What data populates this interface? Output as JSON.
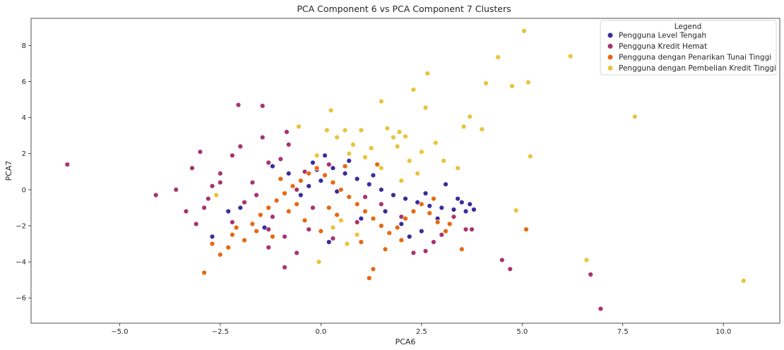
{
  "chart_data": {
    "type": "scatter",
    "title": "PCA Component 6 vs PCA Component 7 Clusters",
    "xlabel": "PCA6",
    "ylabel": "PCA7",
    "xlim": [
      -7.2,
      11.4
    ],
    "ylim": [
      -7.4,
      9.5
    ],
    "xticks": [
      -5.0,
      -2.5,
      0.0,
      2.5,
      5.0,
      7.5,
      10.0
    ],
    "xtick_labels": [
      "−5.0",
      "−2.5",
      "0.0",
      "2.5",
      "5.0",
      "7.5",
      "10.0"
    ],
    "yticks": [
      -6,
      -4,
      -2,
      0,
      2,
      4,
      6,
      8
    ],
    "ytick_labels": [
      "−6",
      "−4",
      "−2",
      "0",
      "2",
      "4",
      "6",
      "8"
    ],
    "grid": false,
    "legend": {
      "title": "Legend",
      "placement": "top-right"
    },
    "series": [
      {
        "name": "Pengguna Level Tengah",
        "color": "#3a2d9b",
        "points": [
          [
            0.1,
            1.9
          ],
          [
            -0.2,
            1.5
          ],
          [
            0.3,
            1.2
          ],
          [
            0.6,
            0.9
          ],
          [
            0.9,
            0.6
          ],
          [
            1.2,
            0.3
          ],
          [
            1.5,
            0.0
          ],
          [
            1.8,
            -0.3
          ],
          [
            2.1,
            -0.5
          ],
          [
            2.4,
            -0.7
          ],
          [
            2.7,
            -0.9
          ],
          [
            3.0,
            -1.0
          ],
          [
            3.3,
            -1.1
          ],
          [
            3.6,
            -1.2
          ],
          [
            3.8,
            -1.1
          ],
          [
            3.4,
            -0.5
          ],
          [
            3.1,
            0.3
          ],
          [
            2.2,
            -2.6
          ],
          [
            2.5,
            -2.3
          ],
          [
            1.0,
            -1.6
          ],
          [
            -0.5,
            -0.3
          ],
          [
            -1.2,
            1.3
          ],
          [
            -1.4,
            -2.1
          ],
          [
            -2.0,
            -1.0
          ],
          [
            0.0,
            0.5
          ],
          [
            0.4,
            -0.1
          ],
          [
            -0.3,
            0.2
          ],
          [
            1.6,
            -1.2
          ],
          [
            2.9,
            -1.6
          ],
          [
            3.5,
            -0.7
          ],
          [
            -0.8,
            0.9
          ],
          [
            0.7,
            1.6
          ],
          [
            1.3,
            0.8
          ],
          [
            2.0,
            -1.9
          ],
          [
            -2.3,
            -1.2
          ],
          [
            -2.7,
            -2.6
          ],
          [
            2.6,
            -0.2
          ],
          [
            3.7,
            -0.8
          ],
          [
            0.2,
            -2.9
          ],
          [
            -0.1,
            1.1
          ]
        ]
      },
      {
        "name": "Pengguna Kredit Hemat",
        "color": "#a8336e",
        "points": [
          [
            -6.3,
            1.4
          ],
          [
            -4.1,
            -0.3
          ],
          [
            -3.6,
            0.0
          ],
          [
            -3.35,
            -1.2
          ],
          [
            -3.2,
            1.2
          ],
          [
            -3.0,
            2.1
          ],
          [
            -3.1,
            -1.9
          ],
          [
            -2.9,
            -1.0
          ],
          [
            -2.8,
            -0.5
          ],
          [
            -2.7,
            0.2
          ],
          [
            -2.5,
            0.9
          ],
          [
            -2.2,
            1.9
          ],
          [
            -2.0,
            2.4
          ],
          [
            -2.05,
            4.7
          ],
          [
            -1.45,
            4.65
          ],
          [
            -1.45,
            2.9
          ],
          [
            -1.3,
            1.5
          ],
          [
            -0.85,
            3.2
          ],
          [
            -0.8,
            2.5
          ],
          [
            -1.0,
            1.7
          ],
          [
            -1.7,
            0.4
          ],
          [
            -1.9,
            -0.7
          ],
          [
            -1.2,
            -1.5
          ],
          [
            -0.9,
            -2.6
          ],
          [
            -0.9,
            -4.3
          ],
          [
            -0.6,
            -3.5
          ],
          [
            -1.3,
            -3.2
          ],
          [
            -1.3,
            -2.2
          ],
          [
            -2.2,
            -1.8
          ],
          [
            -0.3,
            -2.2
          ],
          [
            0.3,
            -2.7
          ],
          [
            0.9,
            -1.8
          ],
          [
            1.5,
            -0.8
          ],
          [
            2.0,
            -1.5
          ],
          [
            2.3,
            -3.5
          ],
          [
            2.6,
            -3.4
          ],
          [
            3.0,
            -2.5
          ],
          [
            3.6,
            -2.2
          ],
          [
            3.75,
            -2.2
          ],
          [
            4.5,
            -3.9
          ],
          [
            4.7,
            -4.4
          ],
          [
            6.7,
            -4.7
          ],
          [
            6.95,
            -6.6
          ],
          [
            -0.4,
            1.0
          ],
          [
            0.2,
            1.4
          ],
          [
            -0.6,
            0.0
          ],
          [
            1.1,
            -0.4
          ],
          [
            2.8,
            -2.9
          ],
          [
            -2.5,
            0.4
          ],
          [
            -1.6,
            -0.3
          ],
          [
            3.3,
            -1.5
          ],
          [
            -0.2,
            -1.0
          ]
        ]
      },
      {
        "name": "Pengguna dengan Penarikan Tunai Tinggi",
        "color": "#e8680f",
        "points": [
          [
            -2.9,
            -4.6
          ],
          [
            -2.7,
            -3.0
          ],
          [
            -2.5,
            -3.6
          ],
          [
            -2.3,
            -3.2
          ],
          [
            -2.1,
            -2.1
          ],
          [
            -1.9,
            -2.8
          ],
          [
            -1.7,
            -1.9
          ],
          [
            -1.5,
            -1.4
          ],
          [
            -1.3,
            -1.0
          ],
          [
            -1.1,
            -0.6
          ],
          [
            -0.9,
            -0.2
          ],
          [
            -0.7,
            0.2
          ],
          [
            -0.5,
            0.5
          ],
          [
            -0.3,
            0.9
          ],
          [
            -0.1,
            1.2
          ],
          [
            0.1,
            0.8
          ],
          [
            0.3,
            0.4
          ],
          [
            0.5,
            0.0
          ],
          [
            0.7,
            -0.4
          ],
          [
            0.9,
            -0.8
          ],
          [
            1.1,
            -1.2
          ],
          [
            1.3,
            -1.6
          ],
          [
            1.5,
            -2.0
          ],
          [
            1.7,
            -2.4
          ],
          [
            1.9,
            -2.1
          ],
          [
            2.1,
            -1.6
          ],
          [
            2.3,
            -1.2
          ],
          [
            2.5,
            -0.8
          ],
          [
            2.7,
            -1.3
          ],
          [
            2.9,
            -1.8
          ],
          [
            3.1,
            -2.3
          ],
          [
            3.5,
            -3.3
          ],
          [
            1.3,
            -4.4
          ],
          [
            1.2,
            -4.9
          ],
          [
            1.6,
            -3.3
          ],
          [
            5.1,
            -2.2
          ],
          [
            1.4,
            1.4
          ],
          [
            -0.4,
            -1.7
          ],
          [
            0.0,
            -2.3
          ],
          [
            -0.8,
            -1.2
          ],
          [
            -1.6,
            -2.3
          ],
          [
            -2.2,
            -2.5
          ],
          [
            0.6,
            1.3
          ],
          [
            -1.0,
            0.6
          ],
          [
            0.2,
            -1.0
          ],
          [
            2.0,
            -2.8
          ],
          [
            3.2,
            -1.9
          ],
          [
            -0.6,
            -0.8
          ],
          [
            1.0,
            -2.9
          ],
          [
            -1.2,
            -2.6
          ],
          [
            0.4,
            -1.4
          ],
          [
            2.8,
            -0.5
          ]
        ]
      },
      {
        "name": "Pengguna dengan Pembelian Kredit Tinggi",
        "color": "#e8c43a",
        "points": [
          [
            5.05,
            8.8
          ],
          [
            6.2,
            7.4
          ],
          [
            4.4,
            7.35
          ],
          [
            2.65,
            6.45
          ],
          [
            4.1,
            5.9
          ],
          [
            5.15,
            5.95
          ],
          [
            4.75,
            5.75
          ],
          [
            2.3,
            5.55
          ],
          [
            1.5,
            4.9
          ],
          [
            2.6,
            4.55
          ],
          [
            0.25,
            4.4
          ],
          [
            3.7,
            4.05
          ],
          [
            7.8,
            4.05
          ],
          [
            3.55,
            3.5
          ],
          [
            4.0,
            3.35
          ],
          [
            -0.55,
            3.5
          ],
          [
            0.15,
            3.3
          ],
          [
            0.6,
            3.3
          ],
          [
            1.0,
            3.3
          ],
          [
            1.65,
            3.4
          ],
          [
            1.95,
            3.2
          ],
          [
            2.1,
            2.95
          ],
          [
            2.85,
            2.6
          ],
          [
            0.4,
            2.9
          ],
          [
            0.8,
            2.5
          ],
          [
            1.25,
            2.3
          ],
          [
            1.9,
            2.4
          ],
          [
            2.5,
            2.1
          ],
          [
            5.2,
            1.85
          ],
          [
            3.05,
            1.6
          ],
          [
            3.4,
            1.2
          ],
          [
            2.4,
            0.9
          ],
          [
            2.0,
            0.5
          ],
          [
            1.5,
            1.2
          ],
          [
            1.1,
            1.8
          ],
          [
            0.7,
            2.0
          ],
          [
            -0.1,
            1.9
          ],
          [
            0.5,
            -1.7
          ],
          [
            0.3,
            -2.1
          ],
          [
            -0.05,
            -4.0
          ],
          [
            0.65,
            -3.0
          ],
          [
            4.85,
            -1.15
          ],
          [
            6.6,
            -3.9
          ],
          [
            10.5,
            -5.05
          ],
          [
            -2.6,
            -0.3
          ],
          [
            0.9,
            -2.5
          ],
          [
            2.2,
            1.6
          ],
          [
            1.8,
            2.9
          ]
        ]
      }
    ]
  }
}
